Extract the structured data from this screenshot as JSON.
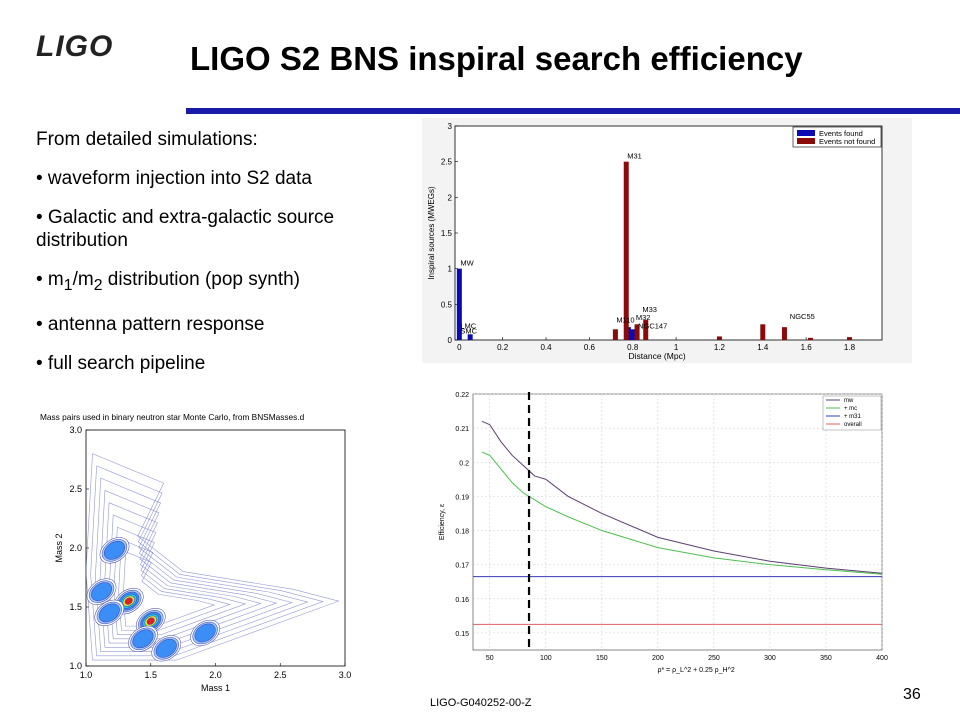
{
  "header": {
    "logo_text": "LIGO",
    "title": "LIGO S2 BNS inspiral search efficiency"
  },
  "bullets": {
    "intro": "From detailed simulations:",
    "item1": "• waveform injection into S2 data",
    "item2": "• Galactic and extra-galactic source distribution",
    "item3_prefix": "• m",
    "item3_sub1": "1",
    "item3_mid": "/m",
    "item3_sub2": "2",
    "item3_suffix": " distribution (pop synth)",
    "item4": "• antenna pattern response",
    "item5": "• full search pipeline"
  },
  "footer": {
    "doc_id": "LIGO-G040252-00-Z",
    "page_number": "36"
  },
  "colors": {
    "found": "#0a0ab4",
    "not_found": "#8b0a0a",
    "accent_rule": "#1a1aa8"
  },
  "chart_data": [
    {
      "type": "bar",
      "title": "",
      "xlabel": "Distance (Mpc)",
      "ylabel": "Inspiral sources (MWEGs)",
      "xlim": [
        -0.02,
        1.95
      ],
      "ylim": [
        0,
        3
      ],
      "xticks": [
        "0",
        "0.2",
        "0.4",
        "0.6",
        "0.8",
        "1",
        "1.2",
        "1.4",
        "1.6",
        "1.8"
      ],
      "yticks": [
        "0",
        "0.5",
        "1",
        "1.5",
        "2",
        "2.5",
        "3"
      ],
      "legend": [
        "Events found",
        "Events not found"
      ],
      "legend_position": "top-right",
      "series": [
        {
          "name": "Events found",
          "points": [
            {
              "x": 0.0,
              "y": 1.0
            },
            {
              "x": 0.05,
              "y": 0.08
            },
            {
              "x": 0.78,
              "y": 0.18
            },
            {
              "x": 0.8,
              "y": 0.15
            }
          ]
        },
        {
          "name": "Events not found",
          "points": [
            {
              "x": 0.72,
              "y": 0.15
            },
            {
              "x": 0.77,
              "y": 2.5
            },
            {
              "x": 0.82,
              "y": 0.22
            },
            {
              "x": 0.86,
              "y": 0.28
            },
            {
              "x": 1.2,
              "y": 0.05
            },
            {
              "x": 1.4,
              "y": 0.22
            },
            {
              "x": 1.5,
              "y": 0.18
            },
            {
              "x": 1.62,
              "y": 0.03
            },
            {
              "x": 1.8,
              "y": 0.04
            }
          ]
        }
      ],
      "annotations": [
        {
          "text": "MW",
          "x": 0.0,
          "y": 1.0
        },
        {
          "text": "LMC",
          "x": 0.0,
          "y": 0.12
        },
        {
          "text": "SMC",
          "x": 0.0,
          "y": 0.05
        },
        {
          "text": "M31",
          "x": 0.77,
          "y": 2.5
        },
        {
          "text": "M33",
          "x": 0.84,
          "y": 0.35
        },
        {
          "text": "M32",
          "x": 0.81,
          "y": 0.24
        },
        {
          "text": "M110",
          "x": 0.72,
          "y": 0.2
        },
        {
          "text": "NGC147",
          "x": 0.82,
          "y": 0.12
        },
        {
          "text": "NGC55",
          "x": 1.52,
          "y": 0.25
        }
      ]
    },
    {
      "type": "line",
      "title": "",
      "xlabel": "ρ* = ρ_L^2 + 0.25 ρ_H^2",
      "ylabel": "Efficiency, ε",
      "xlim": [
        35,
        400
      ],
      "ylim": [
        0.145,
        0.22
      ],
      "xticks": [
        "50",
        "100",
        "150",
        "200",
        "250",
        "300",
        "350",
        "400"
      ],
      "yticks": [
        "0.15",
        "0.16",
        "0.17",
        "0.18",
        "0.19",
        "0.2",
        "0.21",
        "0.22"
      ],
      "legend": [
        "mw",
        "+ mc",
        "+ m31",
        "overall"
      ],
      "legend_position": "top-right",
      "threshold_x": 85,
      "series": [
        {
          "name": "mw",
          "color": "#5a3f72",
          "x": [
            43,
            50,
            60,
            70,
            80,
            90,
            100,
            120,
            150,
            200,
            250,
            300,
            350,
            400
          ],
          "y": [
            0.212,
            0.211,
            0.206,
            0.202,
            0.199,
            0.196,
            0.195,
            0.19,
            0.185,
            0.178,
            0.174,
            0.171,
            0.169,
            0.1675
          ]
        },
        {
          "name": "+ mc",
          "color": "#4fbf4f",
          "x": [
            43,
            50,
            60,
            70,
            80,
            90,
            100,
            120,
            150,
            200,
            250,
            300,
            350,
            400
          ],
          "y": [
            0.203,
            0.202,
            0.198,
            0.194,
            0.191,
            0.189,
            0.187,
            0.184,
            0.18,
            0.175,
            0.172,
            0.17,
            0.1685,
            0.1672
          ]
        },
        {
          "name": "+ m31",
          "color": "#3a3ac0",
          "x": [
            35,
            400
          ],
          "y": [
            0.1665,
            0.1665
          ]
        },
        {
          "name": "overall",
          "color": "#e06060",
          "x": [
            35,
            400
          ],
          "y": [
            0.1525,
            0.1525
          ]
        }
      ]
    },
    {
      "type": "heatmap",
      "title": "Mass pairs used in binary neutron star Monte Carlo, from BNSMasses.d",
      "xlabel": "Mass 1",
      "ylabel": "Mass 2",
      "xlim": [
        1.0,
        3.0
      ],
      "ylim": [
        1.0,
        3.0
      ],
      "xticks": [
        "1.0",
        "1.5",
        "2.0",
        "2.5",
        "3.0"
      ],
      "yticks": [
        "1.0",
        "1.5",
        "2.0",
        "2.5",
        "3.0"
      ],
      "peaks": [
        {
          "x": 1.22,
          "y": 1.98,
          "level": 0.55
        },
        {
          "x": 1.12,
          "y": 1.63,
          "level": 0.45
        },
        {
          "x": 1.33,
          "y": 1.55,
          "level": 1.0
        },
        {
          "x": 1.18,
          "y": 1.45,
          "level": 0.5
        },
        {
          "x": 1.5,
          "y": 1.38,
          "level": 0.95
        },
        {
          "x": 1.44,
          "y": 1.23,
          "level": 0.55
        },
        {
          "x": 1.62,
          "y": 1.15,
          "level": 0.5
        },
        {
          "x": 1.92,
          "y": 1.28,
          "level": 0.45
        }
      ]
    }
  ]
}
